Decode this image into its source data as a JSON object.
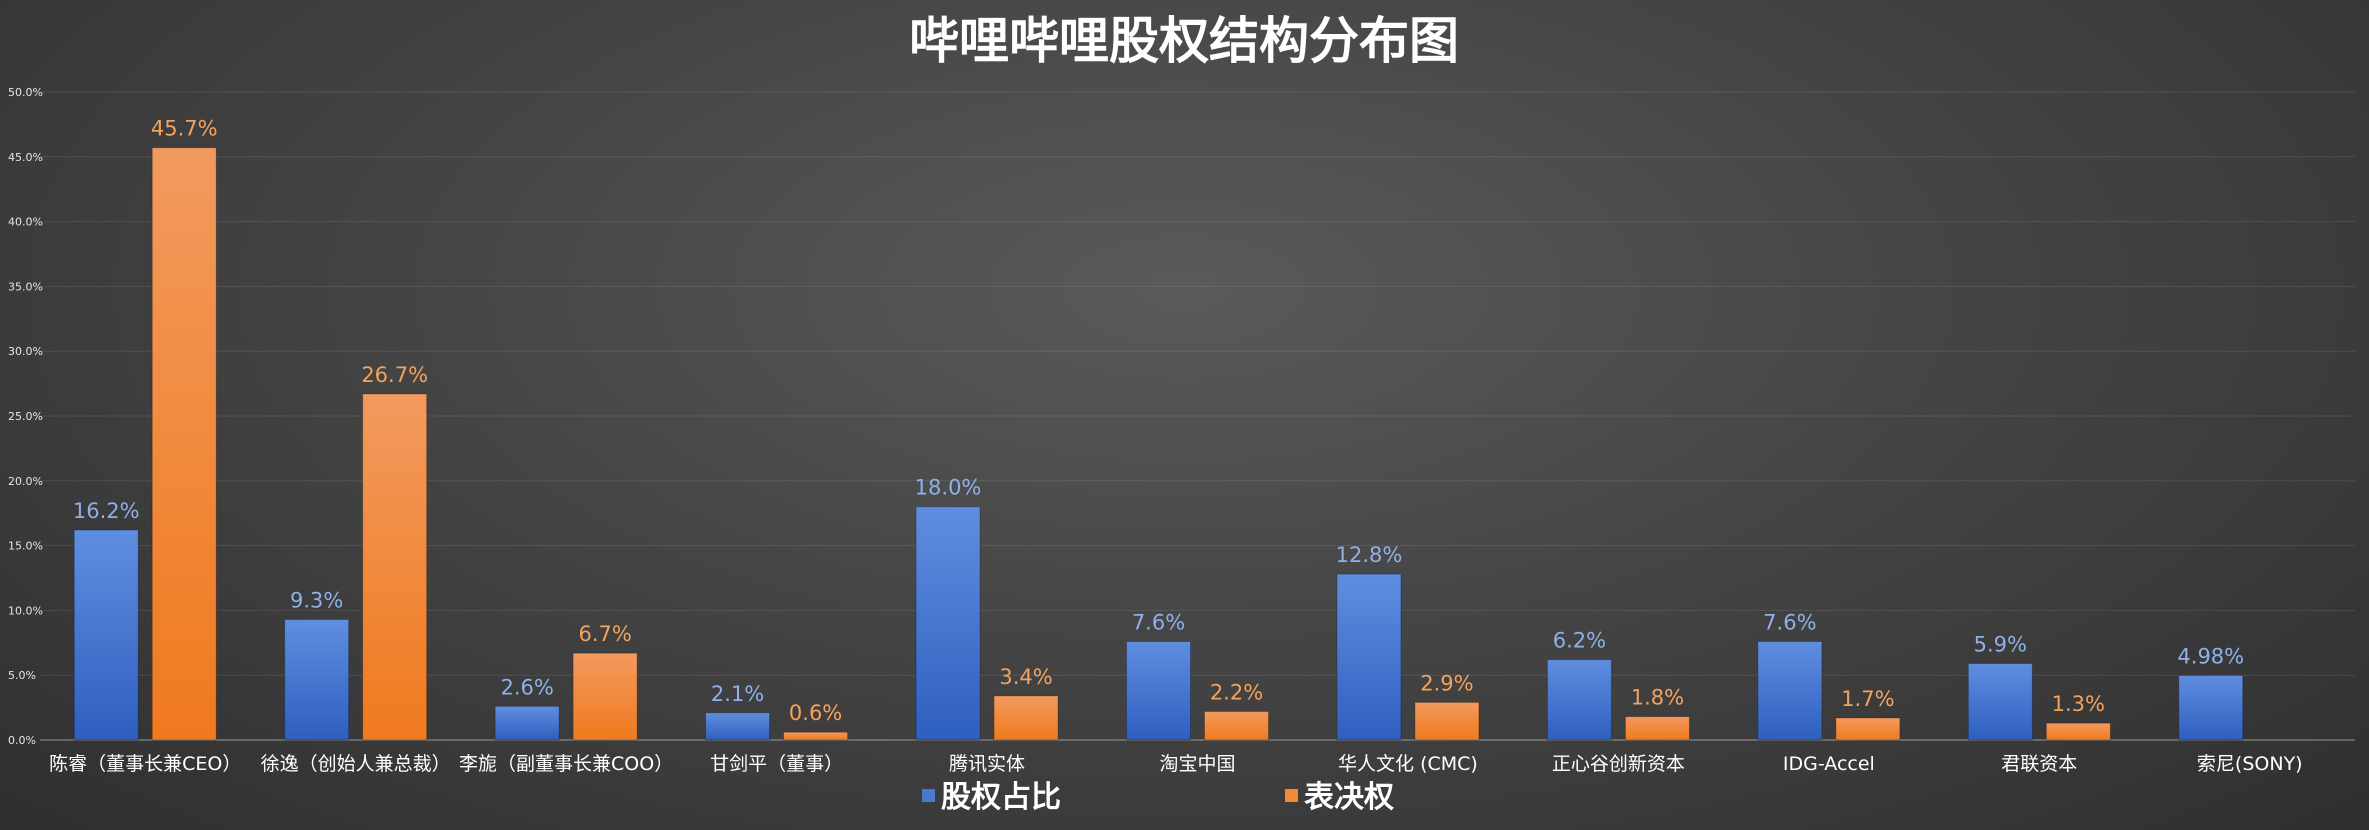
{
  "chart_data": {
    "type": "bar",
    "title": "哔哩哔哩股权结构分布图",
    "categories": [
      "陈睿（董事长兼CEO）",
      "徐逸（创始人兼总裁）",
      "李旎（副董事长兼COO）",
      "甘剑平（董事）",
      "腾讯实体",
      "淘宝中国",
      "华人文化 (CMC)",
      "正心谷创新资本",
      "IDG-Accel",
      "君联资本",
      "索尼(SONY)"
    ],
    "series": [
      {
        "name": "股权占比",
        "color": "#4a78cf",
        "values": [
          16.2,
          9.3,
          2.6,
          2.1,
          18.0,
          7.6,
          12.8,
          6.2,
          7.6,
          5.9,
          4.98
        ],
        "labels": [
          "16.2%",
          "9.3%",
          "2.6%",
          "2.1%",
          "18.0%",
          "7.6%",
          "12.8%",
          "6.2%",
          "7.6%",
          "5.9%",
          "4.98%"
        ]
      },
      {
        "name": "表决权",
        "color": "#f08a35",
        "values": [
          45.7,
          26.7,
          6.7,
          0.6,
          3.4,
          2.2,
          2.9,
          1.8,
          1.7,
          1.3,
          null
        ],
        "labels": [
          "45.7%",
          "26.7%",
          "6.7%",
          "0.6%",
          "3.4%",
          "2.2%",
          "2.9%",
          "1.8%",
          "1.7%",
          "1.3%",
          ""
        ]
      }
    ],
    "ylim": [
      0,
      50
    ],
    "yticks": [
      "0.0%",
      "5.0%",
      "10.0%",
      "15.0%",
      "20.0%",
      "25.0%",
      "30.0%",
      "35.0%",
      "40.0%",
      "45.0%",
      "50.0%"
    ],
    "grid": true,
    "legend": "bottom-center"
  }
}
